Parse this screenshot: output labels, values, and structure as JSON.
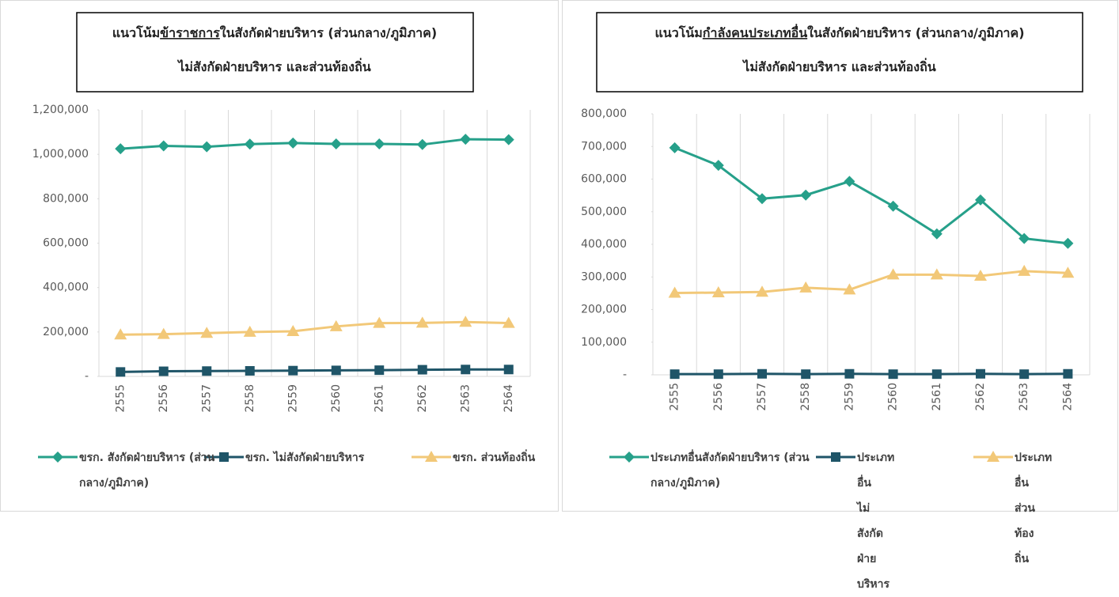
{
  "chart_data": [
    {
      "type": "line",
      "title": [
        "แนวโน้ม",
        "ข้าราชการ",
        "ในสังกัดฝ่ายบริหาร (ส่วนกลาง/ภูมิภาค)"
      ],
      "title_line2": "ไม่สังกัดฝ่ายบริหาร และส่วนท้องถิ่น",
      "categories": [
        "2555",
        "2556",
        "2557",
        "2558",
        "2559",
        "2560",
        "2561",
        "2562",
        "2563",
        "2564"
      ],
      "ylim": [
        0,
        1200000
      ],
      "yticks": [
        {
          "value": 0,
          "label": "-"
        },
        {
          "value": 200000,
          "label": "200,000"
        },
        {
          "value": 400000,
          "label": "400,000"
        },
        {
          "value": 600000,
          "label": "600,000"
        },
        {
          "value": 800000,
          "label": "800,000"
        },
        {
          "value": 1000000,
          "label": "1,000,000"
        },
        {
          "value": 1200000,
          "label": "1,200,000"
        }
      ],
      "legend": "bottom",
      "series": [
        {
          "name": "ขรก. สังกัดฝ่ายบริหาร (ส่วนกลาง/ภูมิภาค)",
          "color": "#26a08a",
          "marker": "diamond",
          "values": [
            1025000,
            1038000,
            1034000,
            1046000,
            1051000,
            1047000,
            1047000,
            1044000,
            1068000,
            1066000
          ]
        },
        {
          "name": "ขรก. ไม่สังกัดฝ่ายบริหาร",
          "color": "#1f5568",
          "marker": "square",
          "values": [
            20000,
            23000,
            24000,
            25000,
            26000,
            27000,
            28000,
            30000,
            31000,
            31000
          ]
        },
        {
          "name": "ขรก. ส่วนท้องถิ่น",
          "color": "#f2c878",
          "marker": "triangle",
          "values": [
            188000,
            190000,
            195000,
            200000,
            203000,
            225000,
            240000,
            241000,
            245000,
            240000
          ]
        }
      ]
    },
    {
      "type": "line",
      "title": [
        "แนวโน้ม",
        "กำลังคนประเภทอื่น",
        "ในสังกัดฝ่ายบริหาร (ส่วนกลาง/ภูมิภาค)"
      ],
      "title_line2": "ไม่สังกัดฝ่ายบริหาร และส่วนท้องถิ่น",
      "categories": [
        "2555",
        "2556",
        "2557",
        "2558",
        "2559",
        "2560",
        "2561",
        "2562",
        "2563",
        "2564"
      ],
      "ylim": [
        0,
        800000
      ],
      "yticks": [
        {
          "value": 0,
          "label": "-"
        },
        {
          "value": 100000,
          "label": "100,000"
        },
        {
          "value": 200000,
          "label": "200,000"
        },
        {
          "value": 300000,
          "label": "300,000"
        },
        {
          "value": 400000,
          "label": "400,000"
        },
        {
          "value": 500000,
          "label": "500,000"
        },
        {
          "value": 600000,
          "label": "600,000"
        },
        {
          "value": 700000,
          "label": "700,000"
        },
        {
          "value": 800000,
          "label": "800,000"
        }
      ],
      "legend": "bottom",
      "series": [
        {
          "name": "ประเภทอื่นสังกัดฝ่ายบริหาร (ส่วนกลาง/ภูมิภาค)",
          "color": "#26a08a",
          "marker": "diamond",
          "values": [
            696000,
            642000,
            540000,
            551000,
            593000,
            517000,
            432000,
            536000,
            418000,
            403000
          ]
        },
        {
          "name": "ประเภทอื่น ไม่สังกัดฝ่ายบริหาร",
          "color": "#1f5568",
          "marker": "square",
          "values": [
            2000,
            2000,
            3000,
            2000,
            3000,
            2000,
            2000,
            3000,
            2000,
            3000
          ]
        },
        {
          "name": "ประเภทอื่น ส่วนท้องถิ่น",
          "color": "#f2c878",
          "marker": "triangle",
          "values": [
            251000,
            252000,
            254000,
            267000,
            261000,
            307000,
            307000,
            303000,
            318000,
            312000
          ]
        }
      ]
    }
  ]
}
